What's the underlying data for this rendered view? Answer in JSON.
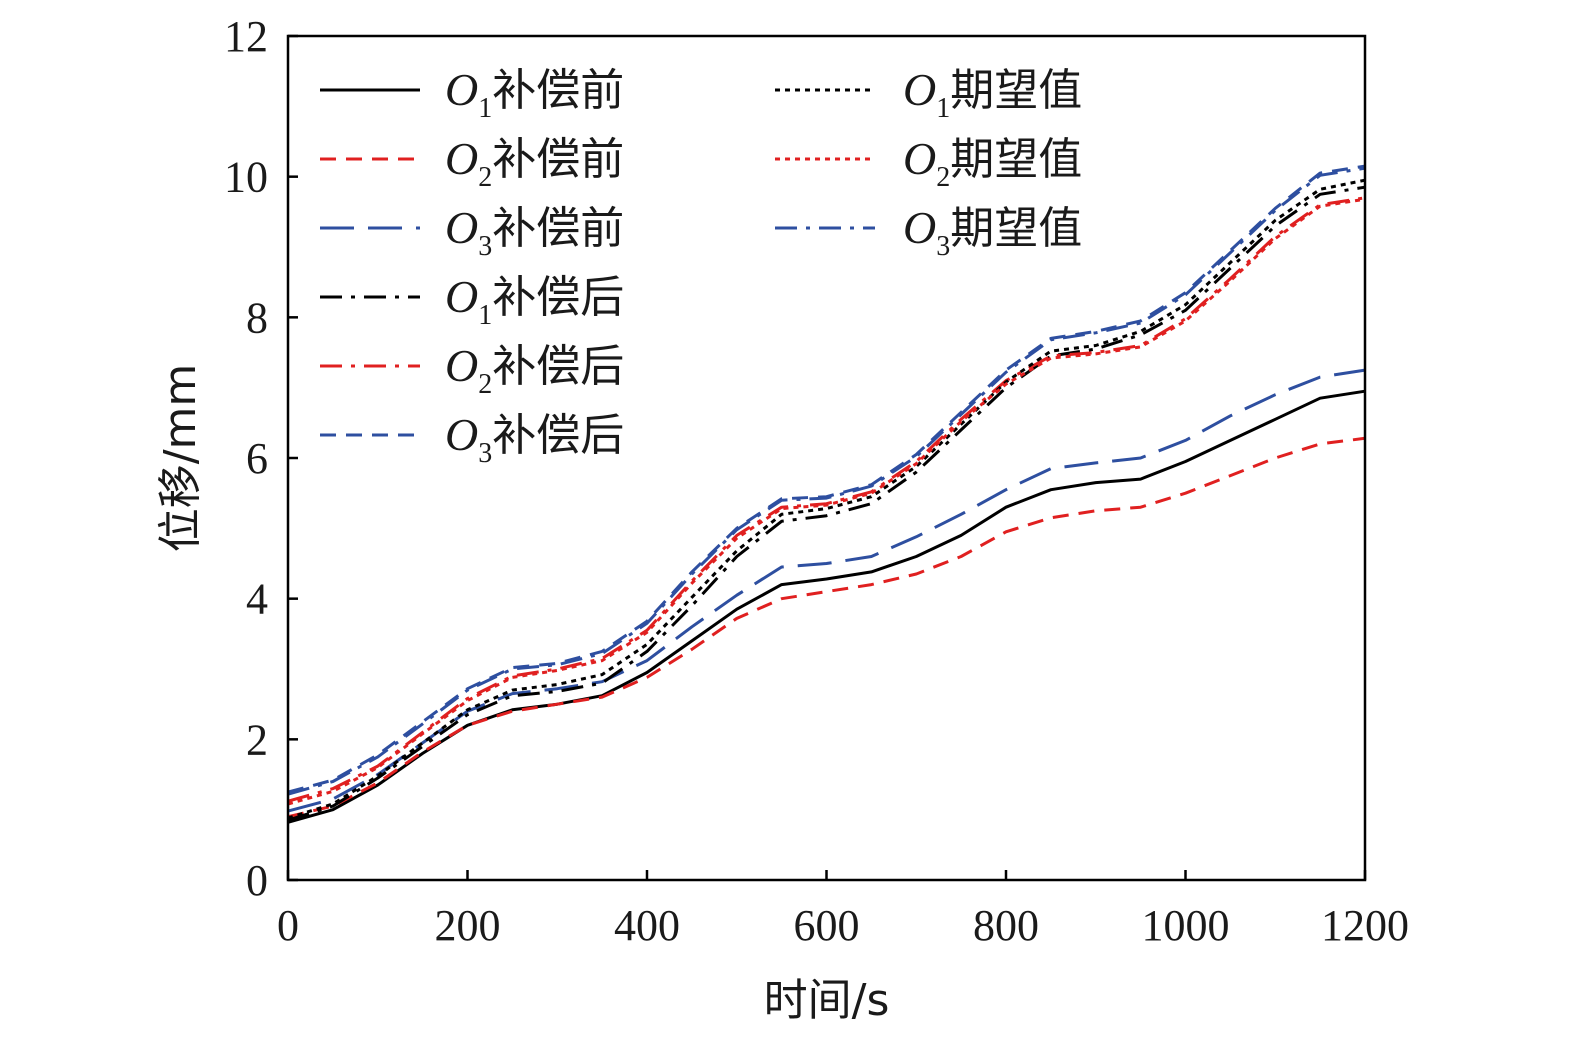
{
  "chart_data": {
    "type": "line",
    "title": "",
    "xlabel": "时间/s",
    "ylabel": "位移/mm",
    "xlim": [
      0,
      1200
    ],
    "ylim": [
      0,
      12
    ],
    "xticks": [
      0,
      200,
      400,
      600,
      800,
      1000,
      1200
    ],
    "xtick_labels": [
      "0",
      "200",
      "400",
      "600",
      "800",
      "1000",
      "1200"
    ],
    "yticks": [
      0,
      2,
      4,
      6,
      8,
      10,
      12
    ],
    "ytick_labels": [
      "0",
      "2",
      "4",
      "6",
      "8",
      "10",
      "12"
    ],
    "grid": false,
    "legend_position": "top-left",
    "x": [
      0,
      50,
      100,
      150,
      200,
      250,
      300,
      350,
      400,
      450,
      500,
      550,
      600,
      650,
      700,
      750,
      800,
      850,
      900,
      950,
      1000,
      1050,
      1100,
      1150,
      1200
    ],
    "series": [
      {
        "name": "O1补偿前",
        "label_o": "O",
        "label_sub": "1",
        "label_text": "补偿前",
        "color": "#000000",
        "dash": "solid",
        "values": [
          0.82,
          1.0,
          1.35,
          1.8,
          2.2,
          2.42,
          2.5,
          2.62,
          2.95,
          3.4,
          3.85,
          4.2,
          4.28,
          4.38,
          4.6,
          4.9,
          5.3,
          5.55,
          5.65,
          5.7,
          5.95,
          6.25,
          6.55,
          6.85,
          6.95
        ]
      },
      {
        "name": "O2补偿前",
        "label_o": "O",
        "label_sub": "2",
        "label_text": "补偿前",
        "color": "#e02020",
        "dash": "dashed",
        "values": [
          0.9,
          1.05,
          1.38,
          1.82,
          2.2,
          2.4,
          2.5,
          2.6,
          2.88,
          3.28,
          3.72,
          4.0,
          4.1,
          4.2,
          4.35,
          4.6,
          4.95,
          5.15,
          5.25,
          5.3,
          5.5,
          5.75,
          6.0,
          6.2,
          6.28
        ]
      },
      {
        "name": "O3补偿前",
        "label_o": "O",
        "label_sub": "3",
        "label_text": "补偿前",
        "color": "#2e4fa0",
        "dash": "longdash",
        "values": [
          0.98,
          1.15,
          1.5,
          1.95,
          2.4,
          2.65,
          2.72,
          2.82,
          3.12,
          3.6,
          4.05,
          4.45,
          4.5,
          4.6,
          4.88,
          5.2,
          5.55,
          5.85,
          5.93,
          6.0,
          6.25,
          6.6,
          6.9,
          7.15,
          7.25
        ]
      },
      {
        "name": "O1补偿后",
        "label_o": "O",
        "label_sub": "1",
        "label_text": "补偿后",
        "color": "#000000",
        "dash": "dashdot",
        "values": [
          0.85,
          1.05,
          1.45,
          1.9,
          2.35,
          2.62,
          2.68,
          2.8,
          3.25,
          3.9,
          4.6,
          5.1,
          5.18,
          5.35,
          5.8,
          6.4,
          7.0,
          7.45,
          7.55,
          7.75,
          8.1,
          8.7,
          9.3,
          9.75,
          9.85
        ]
      },
      {
        "name": "O2补偿后",
        "label_o": "O",
        "label_sub": "2",
        "label_text": "补偿后",
        "color": "#e02020",
        "dash": "dashdot",
        "values": [
          1.12,
          1.3,
          1.62,
          2.1,
          2.58,
          2.9,
          3.0,
          3.15,
          3.55,
          4.25,
          4.9,
          5.3,
          5.35,
          5.52,
          5.95,
          6.55,
          7.1,
          7.45,
          7.5,
          7.6,
          7.98,
          8.55,
          9.15,
          9.6,
          9.7
        ]
      },
      {
        "name": "O3补偿后",
        "label_o": "O",
        "label_sub": "3",
        "label_text": "补偿后",
        "color": "#2e4fa0",
        "dash": "dashed",
        "values": [
          1.25,
          1.42,
          1.78,
          2.25,
          2.72,
          3.02,
          3.08,
          3.25,
          3.68,
          4.38,
          5.0,
          5.42,
          5.45,
          5.62,
          6.05,
          6.65,
          7.25,
          7.7,
          7.8,
          7.95,
          8.35,
          8.95,
          9.55,
          10.05,
          10.15
        ]
      },
      {
        "name": "O1期望值",
        "label_o": "O",
        "label_sub": "1",
        "label_text": "期望值",
        "color": "#000000",
        "dash": "dotted",
        "values": [
          0.88,
          1.08,
          1.48,
          1.95,
          2.42,
          2.7,
          2.78,
          2.92,
          3.35,
          4.02,
          4.68,
          5.2,
          5.28,
          5.45,
          5.88,
          6.48,
          7.08,
          7.52,
          7.6,
          7.8,
          8.18,
          8.78,
          9.38,
          9.82,
          9.95
        ]
      },
      {
        "name": "O2期望值",
        "label_o": "O",
        "label_sub": "2",
        "label_text": "期望值",
        "color": "#e02020",
        "dash": "dotted",
        "values": [
          1.08,
          1.26,
          1.6,
          2.08,
          2.55,
          2.88,
          2.98,
          3.12,
          3.52,
          4.22,
          4.86,
          5.28,
          5.33,
          5.5,
          5.92,
          6.52,
          7.05,
          7.42,
          7.48,
          7.58,
          7.95,
          8.52,
          9.12,
          9.58,
          9.68
        ]
      },
      {
        "name": "O3期望值",
        "label_o": "O",
        "label_sub": "3",
        "label_text": "期望值",
        "color": "#2e4fa0",
        "dash": "dashdot",
        "values": [
          1.22,
          1.4,
          1.75,
          2.22,
          2.7,
          3.0,
          3.06,
          3.22,
          3.65,
          4.35,
          4.98,
          5.4,
          5.43,
          5.6,
          6.02,
          6.62,
          7.22,
          7.68,
          7.78,
          7.92,
          8.32,
          8.92,
          9.52,
          10.02,
          10.12
        ]
      }
    ]
  }
}
